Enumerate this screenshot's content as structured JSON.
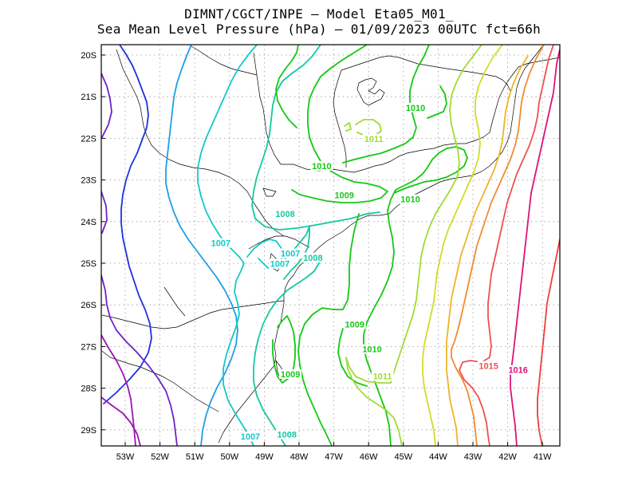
{
  "title_line1": "DIMNT/CGCT/INPE –  Model Eta05_M01_",
  "title_line2": "Sea Mean Level Pressure (hPa) – 01/09/2023 00UTC fct=66h",
  "lat_ticks": [
    "20S",
    "21S",
    "22S",
    "23S",
    "24S",
    "25S",
    "26S",
    "27S",
    "28S",
    "29S"
  ],
  "lon_ticks": [
    "53W",
    "52W",
    "51W",
    "50W",
    "49W",
    "48W",
    "47W",
    "46W",
    "45W",
    "44W",
    "43W",
    "42W",
    "41W"
  ],
  "colors": {
    "1003": "#1e32dc",
    "1004": "#6e23c8",
    "1005": "#9b14b4",
    "1006": "#1e9ee6",
    "1007": "#14c8c8",
    "1008": "#14c8a0",
    "1009": "#14c814",
    "1010": "#14c814",
    "1011": "#a0dc32",
    "1012": "#d2dc28",
    "1013": "#f0b428",
    "1014": "#f08c32",
    "1015": "#f05050",
    "1016": "#dc1478",
    "1017": "#f03c3c"
  },
  "contour_labels": [
    {
      "text": "1010",
      "level": "1010",
      "lon": -44.65,
      "lat": -21.3
    },
    {
      "text": "1011",
      "level": "1011",
      "lon": -45.85,
      "lat": -22.05
    },
    {
      "text": "1010",
      "level": "1010",
      "lon": -47.35,
      "lat": -22.7
    },
    {
      "text": "1009",
      "level": "1009",
      "lon": -46.7,
      "lat": -23.4
    },
    {
      "text": "1010",
      "level": "1010",
      "lon": -44.8,
      "lat": -23.5
    },
    {
      "text": "1008",
      "level": "1008",
      "lon": -48.4,
      "lat": -23.85
    },
    {
      "text": "1007",
      "level": "1007",
      "lon": -50.25,
      "lat": -24.55
    },
    {
      "text": "1007",
      "level": "1007",
      "lon": -48.25,
      "lat": -24.8
    },
    {
      "text": "1007",
      "level": "1007",
      "lon": -48.55,
      "lat": -25.05
    },
    {
      "text": "1008",
      "level": "1008",
      "lon": -47.6,
      "lat": -24.9
    },
    {
      "text": "1009",
      "level": "1009",
      "lon": -46.4,
      "lat": -26.5
    },
    {
      "text": "1010",
      "level": "1010",
      "lon": -45.9,
      "lat": -27.1
    },
    {
      "text": "1009",
      "level": "1009",
      "lon": -48.25,
      "lat": -27.7
    },
    {
      "text": "1011",
      "level": "1011",
      "lon": -45.6,
      "lat": -27.75
    },
    {
      "text": "1015",
      "level": "1015",
      "lon": -42.55,
      "lat": -27.5
    },
    {
      "text": "1016",
      "level": "1016",
      "lon": -41.7,
      "lat": -27.6
    },
    {
      "text": "1007",
      "level": "1007",
      "lon": -49.4,
      "lat": -29.2
    },
    {
      "text": "1008",
      "level": "1008",
      "lon": -48.35,
      "lat": -29.15
    }
  ]
}
